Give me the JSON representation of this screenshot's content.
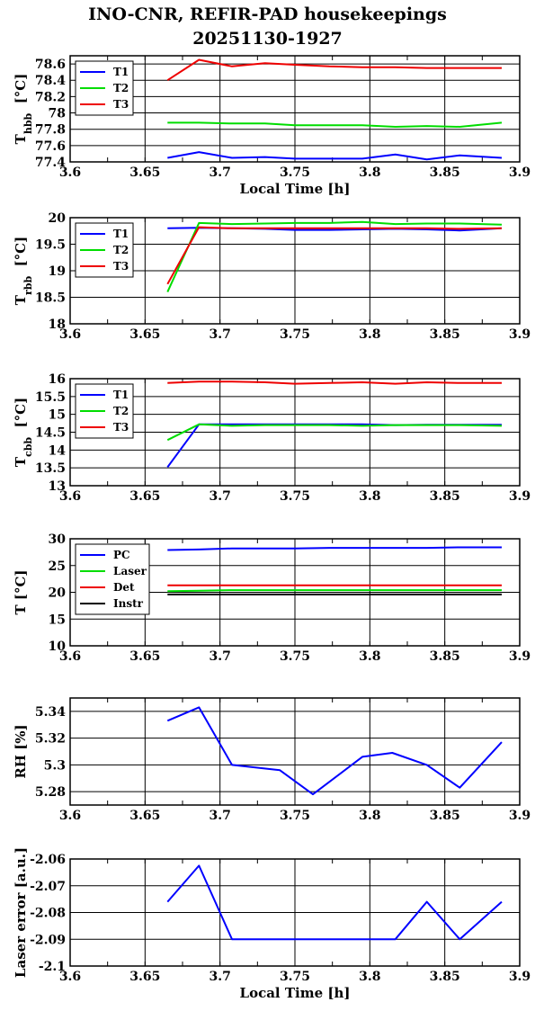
{
  "title_line1": "INO-CNR, REFIR-PAD housekeepings",
  "title_line2": "20251130-1927",
  "colors": {
    "blue": "#0000ff",
    "green": "#00dd00",
    "red": "#ee0000",
    "black": "#000000"
  },
  "chart_data": [
    {
      "type": "line",
      "ylabel": "T",
      "ylabel_sub": "hbb",
      "ylabel_unit": "[°C]",
      "xlabel": "Local Time [h]",
      "xlim": [
        3.6,
        3.9
      ],
      "ylim": [
        77.4,
        78.7
      ],
      "xticks": [
        "3.6",
        "3.65",
        "3.7",
        "3.75",
        "3.8",
        "3.85",
        "3.9"
      ],
      "yticks": [
        "77.4",
        "77.6",
        "77.8",
        "78",
        "78.2",
        "78.4",
        "78.6"
      ],
      "x": [
        3.665,
        3.686,
        3.708,
        3.73,
        3.75,
        3.773,
        3.795,
        3.817,
        3.838,
        3.86,
        3.888
      ],
      "legend": "top-left",
      "series": [
        {
          "name": "T1",
          "color": "blue",
          "values": [
            77.45,
            77.52,
            77.45,
            77.46,
            77.44,
            77.44,
            77.44,
            77.49,
            77.43,
            77.48,
            77.45
          ]
        },
        {
          "name": "T2",
          "color": "green",
          "values": [
            77.88,
            77.88,
            77.87,
            77.87,
            77.85,
            77.85,
            77.85,
            77.83,
            77.84,
            77.83,
            77.88
          ]
        },
        {
          "name": "T3",
          "color": "red",
          "values": [
            78.4,
            78.65,
            78.57,
            78.61,
            78.59,
            78.57,
            78.56,
            78.56,
            78.55,
            78.55,
            78.55
          ]
        }
      ]
    },
    {
      "type": "line",
      "ylabel": "T",
      "ylabel_sub": "rbb",
      "ylabel_unit": "[°C]",
      "xlabel": "",
      "xlim": [
        3.6,
        3.9
      ],
      "ylim": [
        18,
        20
      ],
      "xticks": [
        "3.6",
        "3.65",
        "3.7",
        "3.75",
        "3.8",
        "3.85",
        "3.9"
      ],
      "yticks": [
        "18",
        "18.5",
        "19",
        "19.5",
        "20"
      ],
      "x": [
        3.665,
        3.686,
        3.708,
        3.73,
        3.75,
        3.773,
        3.795,
        3.817,
        3.838,
        3.86,
        3.888
      ],
      "legend": "top-left",
      "series": [
        {
          "name": "T1",
          "color": "blue",
          "values": [
            19.8,
            19.81,
            19.8,
            19.79,
            19.77,
            19.77,
            19.78,
            19.79,
            19.78,
            19.76,
            19.8
          ]
        },
        {
          "name": "T2",
          "color": "green",
          "values": [
            18.6,
            19.9,
            19.88,
            19.89,
            19.9,
            19.9,
            19.92,
            19.88,
            19.89,
            19.89,
            19.87
          ]
        },
        {
          "name": "T3",
          "color": "red",
          "values": [
            18.75,
            19.82,
            19.8,
            19.8,
            19.8,
            19.8,
            19.8,
            19.8,
            19.8,
            19.79,
            19.8
          ]
        }
      ]
    },
    {
      "type": "line",
      "ylabel": "T",
      "ylabel_sub": "cbb",
      "ylabel_unit": "[°C]",
      "xlabel": "",
      "xlim": [
        3.6,
        3.9
      ],
      "ylim": [
        13,
        16
      ],
      "xticks": [
        "3.6",
        "3.65",
        "3.7",
        "3.75",
        "3.8",
        "3.85",
        "3.9"
      ],
      "yticks": [
        "13",
        "13.5",
        "14",
        "14.5",
        "15",
        "15.5",
        "16"
      ],
      "x": [
        3.665,
        3.686,
        3.708,
        3.73,
        3.75,
        3.773,
        3.795,
        3.817,
        3.838,
        3.86,
        3.888
      ],
      "legend": "top-left",
      "series": [
        {
          "name": "T1",
          "color": "blue",
          "values": [
            13.52,
            14.72,
            14.72,
            14.72,
            14.72,
            14.72,
            14.72,
            14.7,
            14.71,
            14.71,
            14.71
          ]
        },
        {
          "name": "T2",
          "color": "green",
          "values": [
            14.28,
            14.72,
            14.68,
            14.7,
            14.7,
            14.7,
            14.68,
            14.7,
            14.7,
            14.7,
            14.68
          ]
        },
        {
          "name": "T3",
          "color": "red",
          "values": [
            15.88,
            15.92,
            15.92,
            15.9,
            15.86,
            15.88,
            15.9,
            15.86,
            15.9,
            15.88,
            15.88
          ]
        }
      ]
    },
    {
      "type": "line",
      "ylabel": "T [°C]",
      "ylabel_sub": "",
      "ylabel_unit": "",
      "xlabel": "",
      "xlim": [
        3.6,
        3.9
      ],
      "ylim": [
        10,
        30
      ],
      "xticks": [
        "3.6",
        "3.65",
        "3.7",
        "3.75",
        "3.8",
        "3.85",
        "3.9"
      ],
      "yticks": [
        "10",
        "15",
        "20",
        "25",
        "30"
      ],
      "x": [
        3.665,
        3.686,
        3.708,
        3.73,
        3.75,
        3.773,
        3.795,
        3.817,
        3.838,
        3.86,
        3.888
      ],
      "legend": "top-left",
      "series": [
        {
          "name": "PC",
          "color": "blue",
          "values": [
            27.9,
            28.0,
            28.2,
            28.2,
            28.2,
            28.3,
            28.3,
            28.3,
            28.3,
            28.4,
            28.4
          ]
        },
        {
          "name": "Laser",
          "color": "green",
          "values": [
            20.2,
            20.3,
            20.4,
            20.4,
            20.4,
            20.4,
            20.4,
            20.4,
            20.4,
            20.4,
            20.4
          ]
        },
        {
          "name": "Det",
          "color": "red",
          "values": [
            21.3,
            21.3,
            21.3,
            21.3,
            21.3,
            21.3,
            21.3,
            21.3,
            21.3,
            21.3,
            21.3
          ]
        },
        {
          "name": "Instr",
          "color": "black",
          "values": [
            19.6,
            19.6,
            19.6,
            19.6,
            19.6,
            19.6,
            19.6,
            19.6,
            19.6,
            19.6,
            19.6
          ]
        }
      ]
    },
    {
      "type": "line",
      "ylabel": "RH [%]",
      "ylabel_sub": "",
      "ylabel_unit": "",
      "xlabel": "",
      "xlim": [
        3.6,
        3.9
      ],
      "ylim": [
        5.27,
        5.35
      ],
      "xticks": [
        "3.6",
        "3.65",
        "3.7",
        "3.75",
        "3.8",
        "3.85",
        "3.9"
      ],
      "yticks": [
        "5.28",
        "5.3",
        "5.32",
        "5.34"
      ],
      "x": [
        3.665,
        3.686,
        3.708,
        3.74,
        3.762,
        3.795,
        3.815,
        3.838,
        3.86,
        3.888
      ],
      "legend": "none",
      "series": [
        {
          "name": "",
          "color": "blue",
          "values": [
            5.333,
            5.343,
            5.3,
            5.296,
            5.278,
            5.306,
            5.309,
            5.3,
            5.283,
            5.317
          ]
        }
      ]
    },
    {
      "type": "line",
      "ylabel": "Laser error [a.u.]",
      "ylabel_sub": "",
      "ylabel_unit": "",
      "xlabel": "Local Time [h]",
      "xlim": [
        3.6,
        3.9
      ],
      "ylim": [
        -2.1,
        -2.06
      ],
      "xticks": [
        "3.6",
        "3.65",
        "3.7",
        "3.75",
        "3.8",
        "3.85",
        "3.9"
      ],
      "yticks": [
        "-2.1",
        "-2.09",
        "-2.08",
        "-2.07",
        "-2.06"
      ],
      "x": [
        3.665,
        3.686,
        3.708,
        3.74,
        3.773,
        3.795,
        3.817,
        3.838,
        3.86,
        3.888
      ],
      "legend": "none",
      "series": [
        {
          "name": "",
          "color": "blue",
          "values": [
            -2.076,
            -2.0625,
            -2.09,
            -2.09,
            -2.09,
            -2.09,
            -2.09,
            -2.076,
            -2.09,
            -2.076
          ]
        }
      ]
    }
  ]
}
